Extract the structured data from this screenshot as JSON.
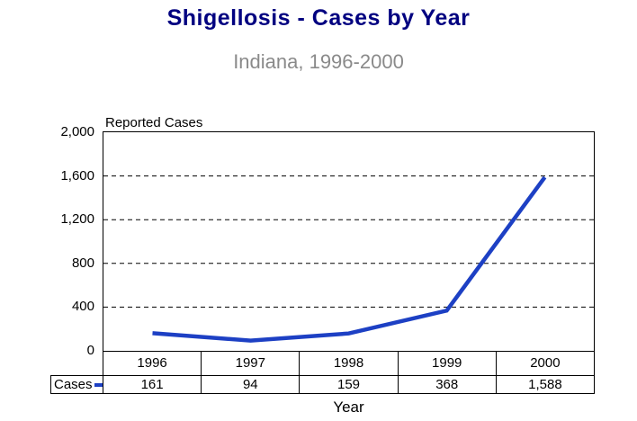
{
  "title": "Shigellosis - Cases by Year",
  "subtitle": "Indiana, 1996-2000",
  "colors": {
    "title": "#000080",
    "subtitle": "#8a8a8a",
    "line": "#1d40c4",
    "grid": "#000000",
    "text": "#000000"
  },
  "legend": {
    "label": "Cases"
  },
  "chart_data": {
    "type": "line",
    "title": "Shigellosis - Cases by Year",
    "subtitle": "Indiana, 1996-2000",
    "ylabel": "Reported Cases",
    "xlabel": "Year",
    "categories": [
      "1996",
      "1997",
      "1998",
      "1999",
      "2000"
    ],
    "series": [
      {
        "name": "Cases",
        "values": [
          161,
          94,
          159,
          368,
          1588
        ]
      }
    ],
    "value_labels": [
      "161",
      "94",
      "159",
      "368",
      "1,588"
    ],
    "ylim": [
      0,
      2000
    ],
    "ytick_step": 400,
    "ytick_labels": [
      "0",
      "400",
      "800",
      "1,200",
      "1,600",
      "2,000"
    ],
    "grid": "horizontal-dashed",
    "legend_position": "table-left"
  }
}
